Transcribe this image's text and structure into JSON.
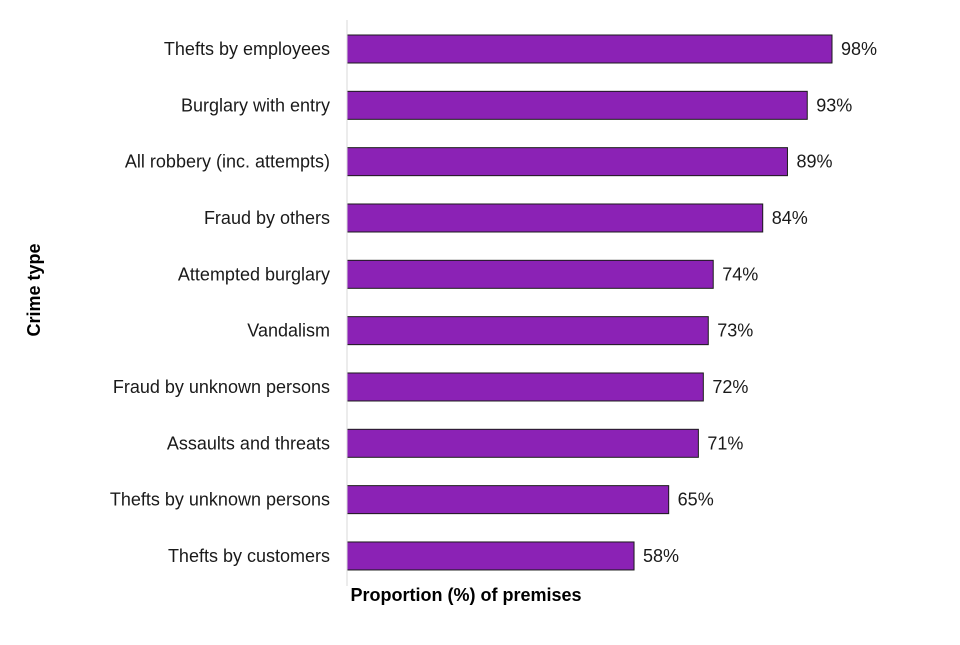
{
  "chart_data": {
    "type": "bar",
    "orientation": "horizontal",
    "categories": [
      "Thefts by employees",
      "Burglary with entry",
      "All robbery (inc. attempts)",
      "Fraud by others",
      "Attempted burglary",
      "Vandalism",
      "Fraud by unknown persons",
      "Assaults and threats",
      "Thefts by unknown persons",
      "Thefts by customers"
    ],
    "values": [
      98,
      93,
      89,
      84,
      74,
      73,
      72,
      71,
      65,
      58
    ],
    "value_labels": [
      "98%",
      "93%",
      "89%",
      "84%",
      "74%",
      "73%",
      "72%",
      "71%",
      "65%",
      "58%"
    ],
    "xlabel": "Proportion (%) of premises",
    "ylabel": "Crime type",
    "xlim": [
      0,
      100
    ],
    "grid": false,
    "legend": "none",
    "colors": {
      "bar_fill": "#8b22b5",
      "bar_stroke": "#1a1a1a",
      "axis": "#d9d9d9"
    }
  }
}
